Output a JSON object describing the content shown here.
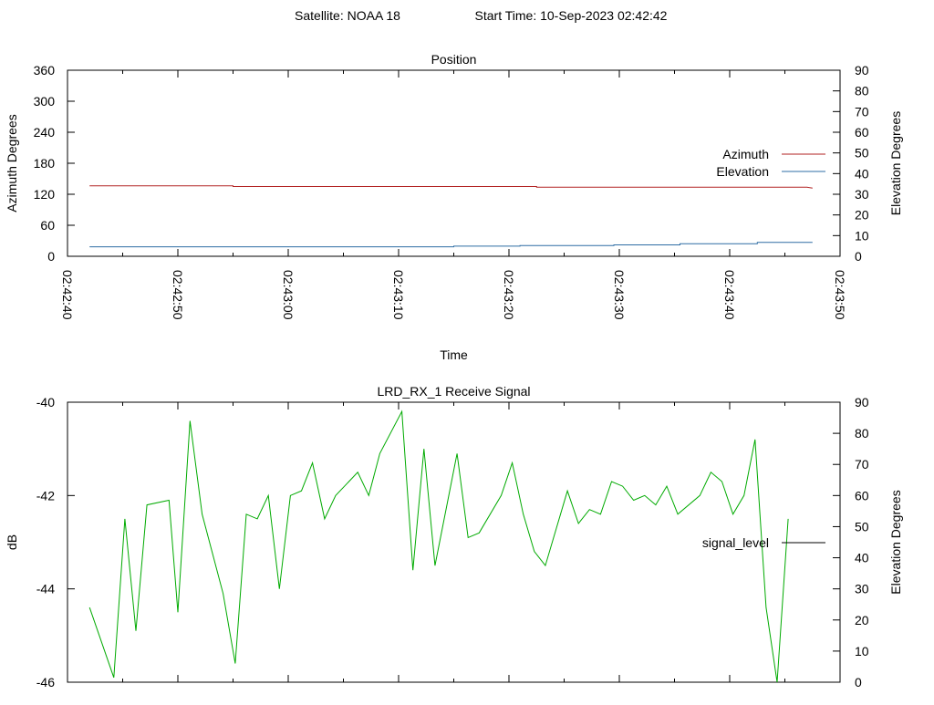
{
  "header": {
    "satellite": "Satellite: NOAA 18",
    "start_time": "Start Time: 10-Sep-2023 02:42:42"
  },
  "chart_data": [
    {
      "type": "line",
      "title": "Position",
      "xlabel": "Time",
      "ylabel": "Azimuth Degrees",
      "y2label": "Elevation Degrees",
      "xlim": [
        0,
        70
      ],
      "ylim": [
        0,
        360
      ],
      "y2lim": [
        0,
        90
      ],
      "x_tick_labels": [
        "02:42:40",
        "02:42:50",
        "02:43:00",
        "02:43:10",
        "02:43:20",
        "02:43:30",
        "02:43:40",
        "02:43:50"
      ],
      "x_tick_values": [
        0,
        10,
        20,
        30,
        40,
        50,
        60,
        70
      ],
      "x_minor_ticks": [
        5,
        15,
        25,
        35,
        45,
        55,
        65
      ],
      "y_ticks": [
        0,
        60,
        120,
        180,
        240,
        300,
        360
      ],
      "y2_ticks": [
        0,
        10,
        20,
        30,
        40,
        50,
        60,
        70,
        80,
        90
      ],
      "legend": "right",
      "grid": false,
      "series": [
        {
          "name": "Azimuth",
          "color": "#b22222",
          "axis": "y",
          "x": [
            2,
            15,
            15,
            42.5,
            42.5,
            67,
            67.5
          ],
          "values": [
            136.5,
            136.5,
            135,
            135,
            133.5,
            133.5,
            132
          ]
        },
        {
          "name": "Elevation",
          "color": "#2e6da4",
          "axis": "y2",
          "x": [
            2,
            35,
            35,
            41,
            41,
            49.5,
            49.5,
            55.5,
            55.5,
            62.5,
            62.5,
            67.5
          ],
          "values": [
            4.6,
            4.6,
            4.9,
            4.9,
            5.2,
            5.2,
            5.5,
            5.5,
            6.1,
            6.1,
            6.7,
            6.7
          ]
        }
      ]
    },
    {
      "type": "line",
      "title": "LRD_RX_1 Receive Signal",
      "ylabel": "dB",
      "y2label": "Elevation Degrees",
      "xlim": [
        0,
        70
      ],
      "ylim": [
        -46,
        -40
      ],
      "y2lim": [
        0,
        90
      ],
      "y_ticks": [
        -46,
        -44,
        -42,
        -40
      ],
      "y2_ticks": [
        0,
        10,
        20,
        30,
        40,
        50,
        60,
        70,
        80,
        90
      ],
      "x_major_ticks": [
        0,
        10,
        20,
        30,
        40,
        50,
        60,
        70
      ],
      "x_minor_ticks": [
        5,
        15,
        25,
        35,
        45,
        55,
        65
      ],
      "legend": "right",
      "grid": false,
      "legend_line_color": "#000000",
      "series": [
        {
          "name": "signal_level",
          "color": "#00aa00",
          "x": [
            2,
            4.2,
            5.2,
            6.2,
            7.2,
            9.2,
            10,
            11.1,
            12.2,
            14.1,
            15.2,
            16.2,
            17.2,
            18.2,
            19.2,
            20.2,
            21.2,
            22.2,
            23.3,
            24.3,
            26.3,
            27.3,
            28.3,
            30.3,
            31.3,
            32.3,
            33.3,
            35.3,
            36.3,
            37.3,
            39.3,
            40.3,
            41.3,
            42.3,
            43.3,
            45.3,
            46.3,
            47.3,
            48.3,
            49.3,
            50.3,
            51.3,
            52.3,
            53.3,
            54.3,
            55.3,
            57.3,
            58.3,
            59.3,
            60.3,
            61.3,
            62.3,
            63.3,
            64.3,
            65.3
          ],
          "values": [
            -44.4,
            -45.9,
            -42.5,
            -44.9,
            -42.2,
            -42.1,
            -44.5,
            -40.4,
            -42.4,
            -44.1,
            -45.6,
            -42.4,
            -42.5,
            -42.0,
            -44.0,
            -42.0,
            -41.9,
            -41.3,
            -42.5,
            -42.0,
            -41.5,
            -42.0,
            -41.1,
            -40.2,
            -43.6,
            -41.0,
            -43.5,
            -41.1,
            -42.9,
            -42.8,
            -42.0,
            -41.3,
            -42.4,
            -43.2,
            -43.5,
            -41.9,
            -42.6,
            -42.3,
            -42.4,
            -41.7,
            -41.8,
            -42.1,
            -42.0,
            -42.2,
            -41.8,
            -42.4,
            -42.0,
            -41.5,
            -41.7,
            -42.4,
            -42.0,
            -40.8,
            -44.4,
            -46.0,
            -42.5
          ]
        }
      ]
    }
  ]
}
